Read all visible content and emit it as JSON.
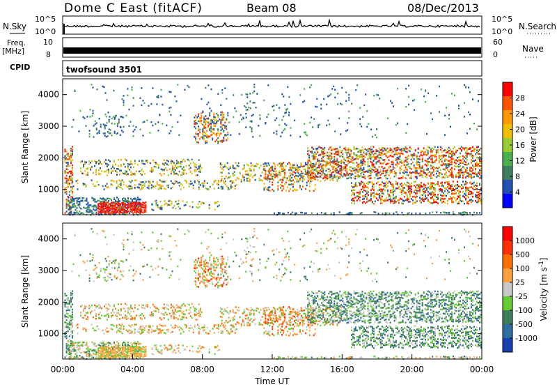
{
  "header": {
    "station": "Dome C East (fitACF)",
    "beam": "Beam 08",
    "date": "08/Dec/2013"
  },
  "strip_panels": {
    "nsky": {
      "label": "N.Sky",
      "left_top": "10^5",
      "left_bottom": "10^0",
      "right_top": "10^5",
      "right_bottom": "10^0",
      "right_label": "N.Search"
    },
    "freq": {
      "label_line1": "Freq.",
      "label_line2": "[MHz]",
      "left_top": "10",
      "left_bottom": "8",
      "right_top": "60",
      "right_bottom": "0",
      "right_label": "Nave"
    },
    "cpid": {
      "label": "CPID",
      "value": "twofsound 3501"
    }
  },
  "chart_data": [
    {
      "type": "heatmap",
      "title": "",
      "ylabel": "Slant Range [km]",
      "xlabel": "",
      "ylim": [
        200,
        4500
      ],
      "xlim": [
        "00:00",
        "24:00"
      ],
      "y_ticks": [
        "1000",
        "2000",
        "3000",
        "4000"
      ],
      "colorbar": {
        "label": "Power [dB]",
        "range": [
          0,
          32
        ],
        "ticks": [
          "4",
          "8",
          "12",
          "16",
          "20",
          "24",
          "28"
        ],
        "colors": [
          "#0000ff",
          "#2050b0",
          "#3f7f5f",
          "#4caf50",
          "#9acd32",
          "#f0c000",
          "#ff9900",
          "#ff5500",
          "#ff0000"
        ]
      }
    },
    {
      "type": "heatmap",
      "title": "",
      "ylabel": "Slant Range [km]",
      "xlabel": "Time UT",
      "ylim": [
        200,
        4500
      ],
      "xlim": [
        "00:00",
        "24:00"
      ],
      "y_ticks": [
        "1000",
        "2000",
        "3000",
        "4000"
      ],
      "x_ticks": [
        "00:00",
        "04:00",
        "08:00",
        "12:00",
        "16:00",
        "20:00",
        "00:00"
      ],
      "colorbar": {
        "label": "Velocity [m s^-1]",
        "ticks": [
          "1000",
          "500",
          "100",
          "25",
          "-25",
          "-100",
          "-500",
          "-1000"
        ],
        "colors": [
          "#1a3fb0",
          "#2f6f9f",
          "#3d7f5a",
          "#66cc33",
          "#c8c8c8",
          "#ffa040",
          "#ff7000",
          "#ff3000",
          "#ff0000"
        ]
      }
    }
  ]
}
